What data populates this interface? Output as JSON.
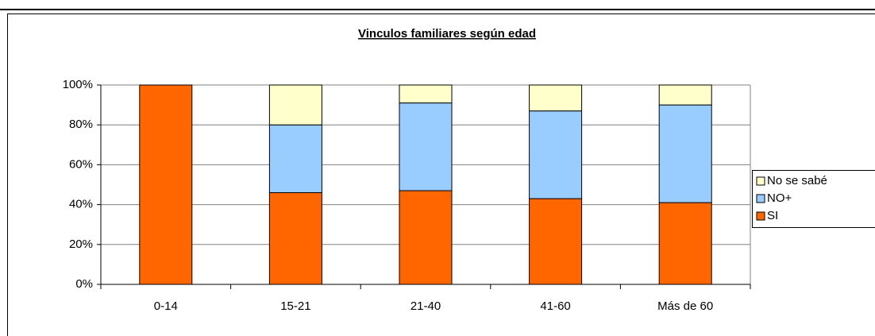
{
  "chart_data": {
    "type": "stacked_bar",
    "title": "Vinculos familiares según edad",
    "categories": [
      "0-14",
      "15-21",
      "21-40",
      "41-60",
      "Más de 60"
    ],
    "series": [
      {
        "name": "SI",
        "color": "#ff6600",
        "values": [
          100,
          46,
          47,
          43,
          41
        ]
      },
      {
        "name": "NO+",
        "color": "#99ccff",
        "values": [
          0,
          34,
          44,
          44,
          49
        ]
      },
      {
        "name": "No se sabé",
        "color": "#ffffcc",
        "values": [
          0,
          20,
          9,
          13,
          10
        ]
      }
    ],
    "ylim": [
      0,
      100
    ],
    "yticks": [
      {
        "value": 0,
        "label": "0%"
      },
      {
        "value": 20,
        "label": "20%"
      },
      {
        "value": 40,
        "label": "40%"
      },
      {
        "value": 60,
        "label": "60%"
      },
      {
        "value": 80,
        "label": "80%"
      },
      {
        "value": 100,
        "label": "100%"
      }
    ],
    "grid": true,
    "legend": "right"
  }
}
